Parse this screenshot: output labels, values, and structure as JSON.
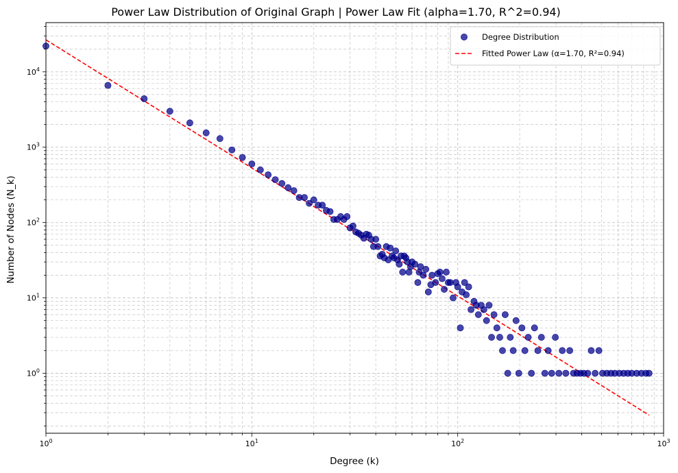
{
  "chart_data": {
    "type": "scatter",
    "title": "Power Law Distribution of Original Graph | Power Law Fit (alpha=1.70, R^2=0.94)",
    "xlabel": "Degree (k)",
    "ylabel": "Number of Nodes (N_k)",
    "xscale": "log",
    "yscale": "log",
    "xlim": [
      1,
      1000
    ],
    "ylim": [
      0.16,
      45000
    ],
    "grid": true,
    "legend_position": "top-right",
    "x_tick_labels": [
      {
        "value": 1,
        "base": "10",
        "exp": "0"
      },
      {
        "value": 10,
        "base": "10",
        "exp": "1"
      },
      {
        "value": 100,
        "base": "10",
        "exp": "2"
      },
      {
        "value": 1000,
        "base": "10",
        "exp": "3"
      }
    ],
    "y_tick_labels": [
      {
        "value": 1,
        "base": "10",
        "exp": "0"
      },
      {
        "value": 10,
        "base": "10",
        "exp": "1"
      },
      {
        "value": 100,
        "base": "10",
        "exp": "2"
      },
      {
        "value": 1000,
        "base": "10",
        "exp": "3"
      },
      {
        "value": 10000,
        "base": "10",
        "exp": "4"
      }
    ],
    "series": [
      {
        "name": "Degree Distribution",
        "kind": "scatter",
        "color": "#00008b",
        "points": [
          [
            1,
            22000
          ],
          [
            2,
            6600
          ],
          [
            3,
            4400
          ],
          [
            4,
            3000
          ],
          [
            5,
            2100
          ],
          [
            6,
            1550
          ],
          [
            7,
            1300
          ],
          [
            8,
            920
          ],
          [
            9,
            730
          ],
          [
            10,
            600
          ],
          [
            11,
            500
          ],
          [
            12,
            430
          ],
          [
            13,
            370
          ],
          [
            14,
            330
          ],
          [
            15,
            290
          ],
          [
            16,
            265
          ],
          [
            17,
            215
          ],
          [
            18,
            215
          ],
          [
            19,
            180
          ],
          [
            20,
            200
          ],
          [
            21,
            170
          ],
          [
            22,
            170
          ],
          [
            23,
            145
          ],
          [
            24,
            140
          ],
          [
            25,
            110
          ],
          [
            26,
            110
          ],
          [
            27,
            120
          ],
          [
            28,
            110
          ],
          [
            29,
            120
          ],
          [
            30,
            85
          ],
          [
            31,
            90
          ],
          [
            32,
            75
          ],
          [
            33,
            72
          ],
          [
            34,
            68
          ],
          [
            35,
            62
          ],
          [
            36,
            70
          ],
          [
            37,
            68
          ],
          [
            38,
            60
          ],
          [
            39,
            48
          ],
          [
            40,
            60
          ],
          [
            41,
            48
          ],
          [
            42,
            36
          ],
          [
            43,
            38
          ],
          [
            44,
            34
          ],
          [
            45,
            48
          ],
          [
            46,
            32
          ],
          [
            47,
            46
          ],
          [
            48,
            36
          ],
          [
            49,
            34
          ],
          [
            50,
            42
          ],
          [
            51,
            32
          ],
          [
            52,
            28
          ],
          [
            53,
            36
          ],
          [
            54,
            22
          ],
          [
            55,
            36
          ],
          [
            56,
            34
          ],
          [
            57,
            30
          ],
          [
            58,
            22
          ],
          [
            59,
            26
          ],
          [
            60,
            30
          ],
          [
            62,
            28
          ],
          [
            64,
            16
          ],
          [
            65,
            22
          ],
          [
            66,
            26
          ],
          [
            68,
            20
          ],
          [
            70,
            24
          ],
          [
            72,
            12
          ],
          [
            74,
            15
          ],
          [
            75,
            20
          ],
          [
            78,
            16
          ],
          [
            80,
            21
          ],
          [
            82,
            22
          ],
          [
            84,
            18
          ],
          [
            86,
            13
          ],
          [
            88,
            22
          ],
          [
            90,
            16
          ],
          [
            92,
            16
          ],
          [
            95,
            10
          ],
          [
            98,
            16
          ],
          [
            100,
            14
          ],
          [
            103,
            4
          ],
          [
            105,
            12
          ],
          [
            108,
            16
          ],
          [
            110,
            11
          ],
          [
            113,
            14
          ],
          [
            116,
            7
          ],
          [
            120,
            9
          ],
          [
            123,
            8
          ],
          [
            126,
            6
          ],
          [
            130,
            8
          ],
          [
            134,
            7
          ],
          [
            138,
            5
          ],
          [
            142,
            8
          ],
          [
            146,
            3
          ],
          [
            150,
            6
          ],
          [
            155,
            4
          ],
          [
            160,
            3
          ],
          [
            165,
            2
          ],
          [
            170,
            6
          ],
          [
            175,
            1
          ],
          [
            180,
            3
          ],
          [
            186,
            2
          ],
          [
            192,
            5
          ],
          [
            198,
            1
          ],
          [
            205,
            4
          ],
          [
            212,
            2
          ],
          [
            220,
            3
          ],
          [
            228,
            1
          ],
          [
            236,
            4
          ],
          [
            245,
            2
          ],
          [
            255,
            3
          ],
          [
            265,
            1
          ],
          [
            275,
            2
          ],
          [
            286,
            1
          ],
          [
            298,
            3
          ],
          [
            310,
            1
          ],
          [
            322,
            2
          ],
          [
            335,
            1
          ],
          [
            350,
            2
          ],
          [
            365,
            1
          ],
          [
            380,
            1
          ],
          [
            395,
            1
          ],
          [
            410,
            1
          ],
          [
            428,
            1
          ],
          [
            445,
            2
          ],
          [
            465,
            1
          ],
          [
            485,
            2
          ],
          [
            505,
            1
          ],
          [
            530,
            1
          ],
          [
            555,
            1
          ],
          [
            580,
            1
          ],
          [
            610,
            1
          ],
          [
            640,
            1
          ],
          [
            670,
            1
          ],
          [
            700,
            1
          ],
          [
            740,
            1
          ],
          [
            780,
            1
          ],
          [
            820,
            1
          ],
          [
            850,
            1
          ]
        ]
      },
      {
        "name": "Fitted Power Law (α=1.70, R²=0.94)",
        "kind": "line",
        "color": "#ff0000",
        "dash": true,
        "x_range": [
          1,
          850
        ],
        "intercept": 26600,
        "slope": -1.7
      }
    ],
    "legend": [
      {
        "label": "Degree Distribution",
        "marker": "circle",
        "color": "#00008b"
      },
      {
        "label": "Fitted Power Law (α=1.70, R²=0.94)",
        "marker": "dashed-line",
        "color": "#ff0000"
      }
    ]
  }
}
